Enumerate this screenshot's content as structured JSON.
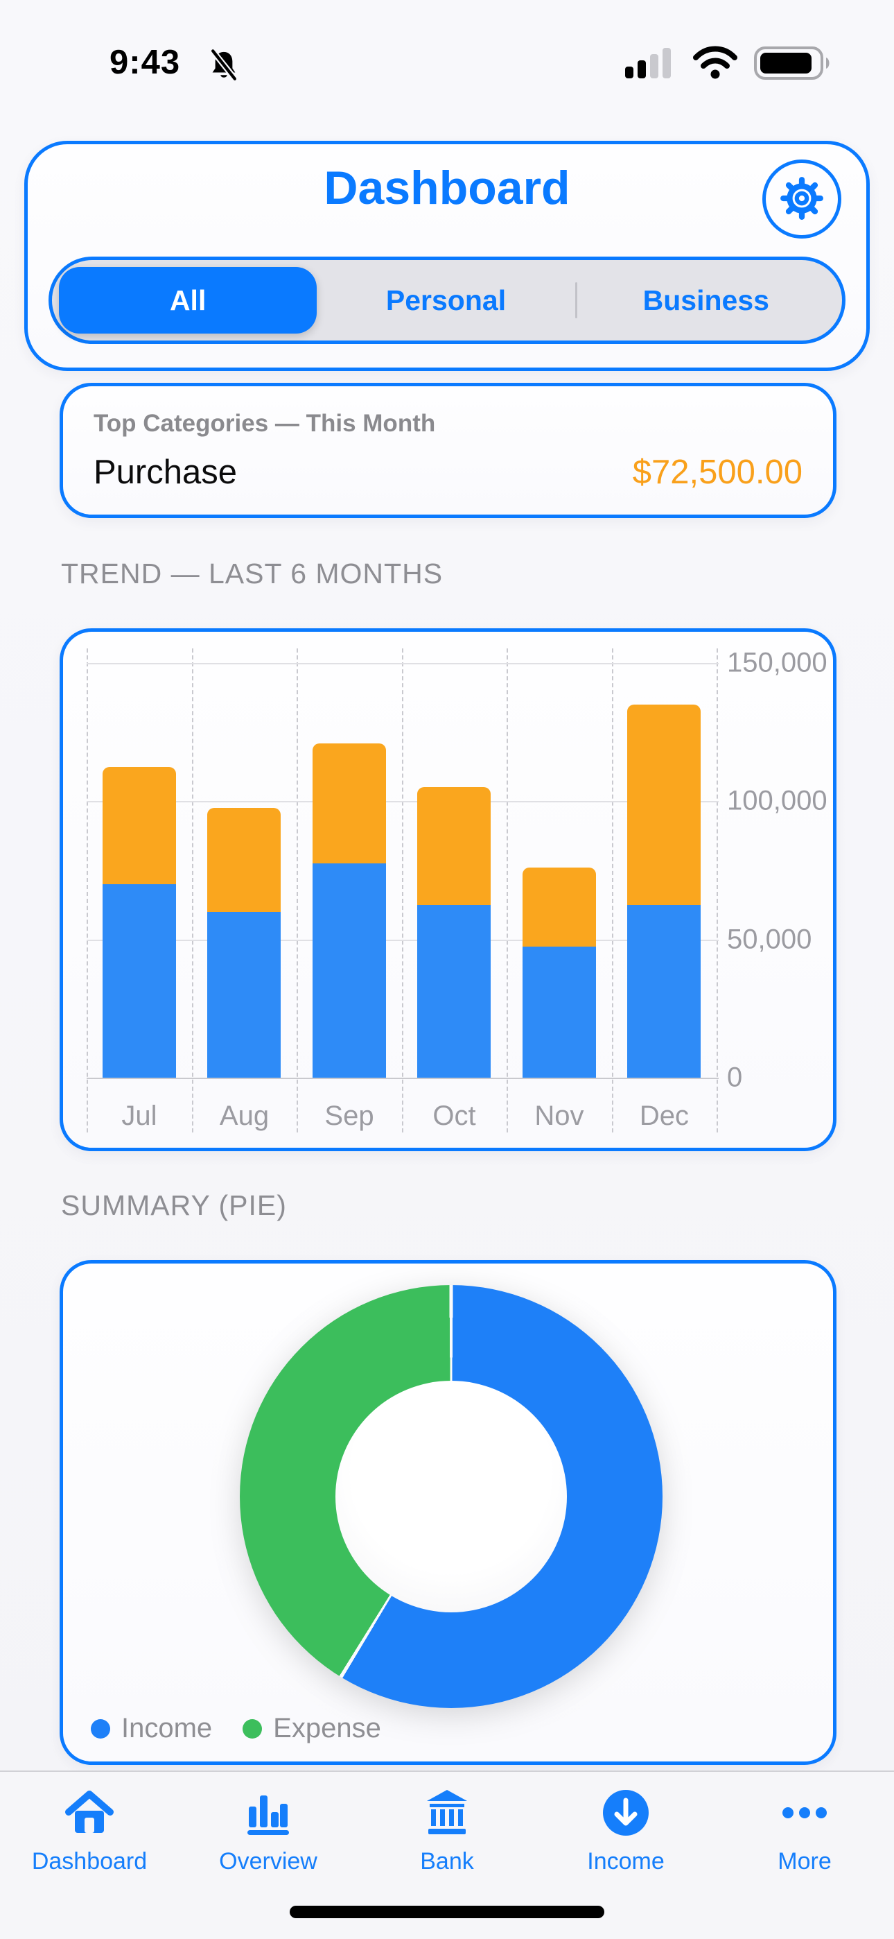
{
  "status_bar": {
    "time": "9:43",
    "muted_icon": "bell-slash-icon",
    "signal_icon": "cellular-signal-icon",
    "wifi_icon": "wifi-icon",
    "battery_icon": "battery-icon"
  },
  "header": {
    "title": "Dashboard",
    "settings_icon": "gear-icon",
    "segments": [
      {
        "label": "All",
        "selected": true
      },
      {
        "label": "Personal",
        "selected": false
      },
      {
        "label": "Business",
        "selected": false
      }
    ]
  },
  "top_categories": {
    "title": "Top Categories — This Month",
    "category": "Purchase",
    "amount": "$72,500.00"
  },
  "sections": {
    "trend": "TREND — LAST 6 MONTHS",
    "summary": "SUMMARY (PIE)"
  },
  "chart_data": [
    {
      "type": "bar",
      "stacked": true,
      "title": "TREND — LAST 6 MONTHS",
      "categories": [
        "Jul",
        "Aug",
        "Sep",
        "Oct",
        "Nov",
        "Dec"
      ],
      "series": [
        {
          "name": "Income",
          "color": "#2E8BF7",
          "values": [
            70000,
            60000,
            77500,
            62500,
            47500,
            62500
          ]
        },
        {
          "name": "Expense",
          "color": "#FAA61E",
          "values": [
            42500,
            37500,
            43500,
            42500,
            28500,
            72500
          ]
        }
      ],
      "ylim": [
        0,
        150000
      ],
      "yticks": [
        0,
        50000,
        100000,
        150000
      ],
      "ytick_labels": [
        "0",
        "50,000",
        "100,000",
        "150,000"
      ],
      "y_axis_side": "right",
      "grid": {
        "horizontal": "solid",
        "vertical": "dashed"
      },
      "legend": false
    },
    {
      "type": "pie",
      "donut": true,
      "title": "SUMMARY (PIE)",
      "labels": [
        "Income",
        "Expense"
      ],
      "values": [
        380000,
        267000
      ],
      "colors": [
        "#1E80F8",
        "#3CBE5C"
      ],
      "start_angle_deg": 0,
      "direction": "clockwise",
      "legend_position": "bottom-left"
    }
  ],
  "tab_bar": {
    "items": [
      {
        "label": "Dashboard",
        "icon": "house-icon"
      },
      {
        "label": "Overview",
        "icon": "bar-chart-icon"
      },
      {
        "label": "Bank",
        "icon": "bank-icon"
      },
      {
        "label": "Income",
        "icon": "arrow-down-circle-icon"
      },
      {
        "label": "More",
        "icon": "ellipsis-icon"
      }
    ]
  },
  "colors": {
    "accent": "#0A7AFF",
    "income_blue": "#2E8BF7",
    "expense_orange": "#FAA61E",
    "pie_income": "#1E80F8",
    "pie_expense": "#3CBE5C",
    "amount_orange": "#F9A01B",
    "card_gap_white": "#FAFAFC"
  }
}
